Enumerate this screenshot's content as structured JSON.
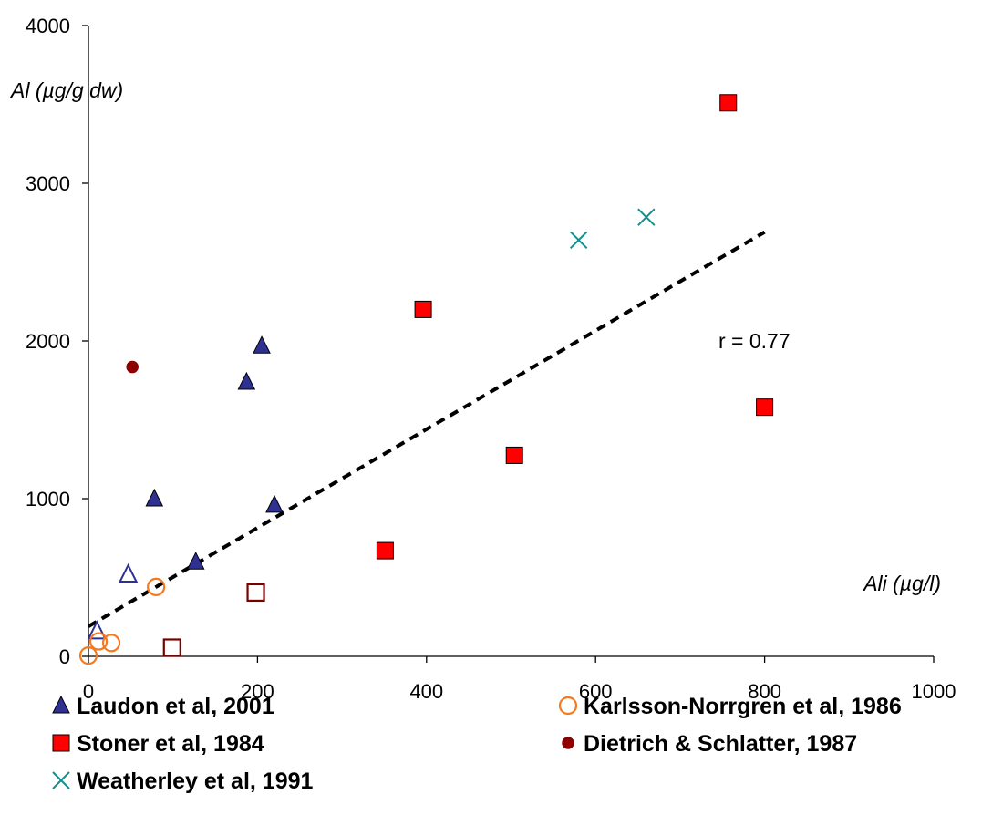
{
  "chart_data": {
    "type": "scatter",
    "xlabel": "Ali (µg/l)",
    "ylabel": "Al (µg/g dw)",
    "xlim": [
      0,
      1000
    ],
    "ylim": [
      0,
      4000
    ],
    "x_ticks": [
      "0",
      "200",
      "400",
      "600",
      "800",
      "1000"
    ],
    "y_ticks": [
      "0",
      "1000",
      "2000",
      "3000",
      "4000"
    ],
    "grid": false,
    "legend_position": "bottom",
    "annotation": "r = 0.77",
    "trendline": {
      "style": "dashed",
      "color": "#000000",
      "x": [
        0,
        800
      ],
      "y": [
        190,
        2690
      ]
    },
    "series": [
      {
        "name": "Laudon et al, 2001",
        "marker": "triangle",
        "color": "#2e3192",
        "points": [
          [
            78,
            1000
          ],
          [
            187,
            1740
          ],
          [
            205,
            1970
          ],
          [
            220,
            960
          ],
          [
            127,
            600
          ]
        ],
        "open_points": [
          [
            47,
            520
          ],
          [
            10,
            160
          ]
        ]
      },
      {
        "name": "Karlsson-Norrgren et al, 1986",
        "marker": "circle-open",
        "color": "#f47920",
        "points": [
          [
            0,
            5
          ],
          [
            12,
            95
          ],
          [
            27,
            85
          ],
          [
            80,
            440
          ]
        ]
      },
      {
        "name": "Stoner et al, 1984",
        "marker": "square",
        "color": "#ff0000",
        "points": [
          [
            757,
            3510
          ],
          [
            396,
            2200
          ],
          [
            800,
            1580
          ],
          [
            504,
            1275
          ],
          [
            351,
            670
          ]
        ],
        "open_points": [
          [
            99,
            55
          ],
          [
            198,
            405
          ]
        ]
      },
      {
        "name": "Dietrich & Schlatter, 1987",
        "marker": "circle",
        "color": "#8b0000",
        "points": [
          [
            52,
            1835
          ]
        ]
      },
      {
        "name": "Weatherley et al, 1991",
        "marker": "x",
        "color": "#138f8c",
        "points": [
          [
            580,
            2640
          ],
          [
            660,
            2785
          ]
        ]
      }
    ]
  }
}
